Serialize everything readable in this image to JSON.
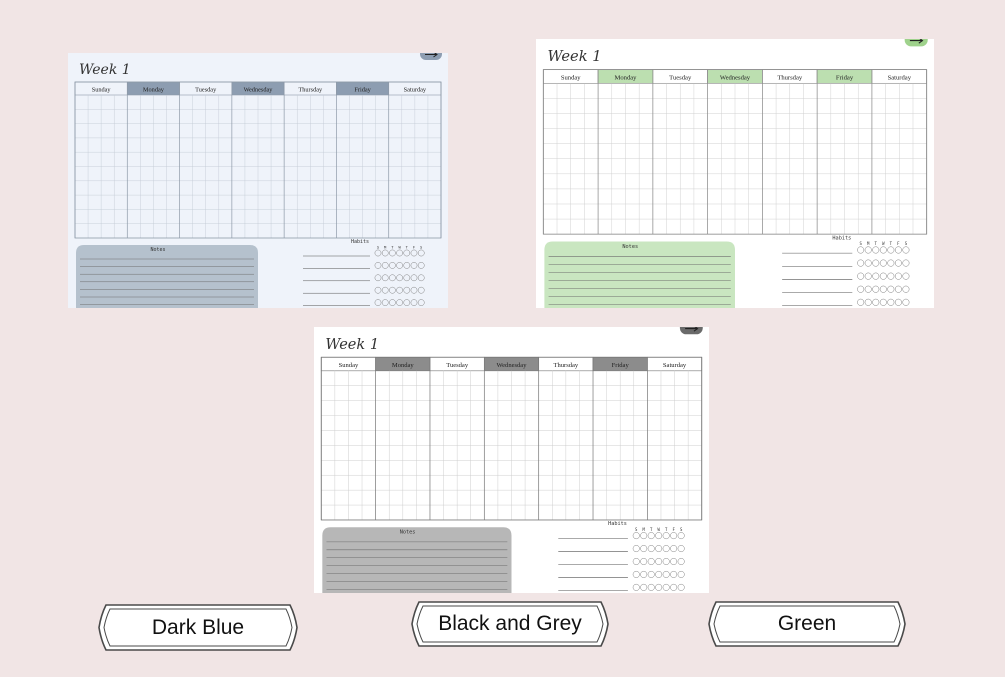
{
  "planner": {
    "week_title": "Week 1",
    "days": [
      "Sunday",
      "Monday",
      "Tuesday",
      "Wednesday",
      "Thursday",
      "Friday",
      "Saturday"
    ],
    "highlighted_days": [
      "Monday",
      "Wednesday",
      "Friday"
    ],
    "notes_label": "Notes",
    "habits_label": "Habits",
    "habit_day_letters": [
      "S",
      "M",
      "T",
      "W",
      "T",
      "F",
      "S"
    ],
    "arrow_icon": "arrow-right-icon"
  },
  "variants": [
    {
      "id": "dark-blue",
      "label": "Dark Blue",
      "colors": {
        "page": "#eff3fa",
        "header": "#8d9db1",
        "notes": "#b5c1cd",
        "grid": "#c4ccd6",
        "frame": "#8e9aa8",
        "tab": "#8d9db1"
      }
    },
    {
      "id": "green",
      "label": "Green",
      "colors": {
        "page": "#ffffff",
        "header": "#bcdfb0",
        "notes": "#c9e6c0",
        "grid": "#cfcfcf",
        "frame": "#8a8a8a",
        "tab": "#9fd28c"
      }
    },
    {
      "id": "black-grey",
      "label": "Black and Grey",
      "colors": {
        "page": "#ffffff",
        "header": "#8c8c8c",
        "notes": "#b7b7b7",
        "grid": "#cccccc",
        "frame": "#7a7a7a",
        "tab": "#6a6a6a"
      }
    }
  ]
}
